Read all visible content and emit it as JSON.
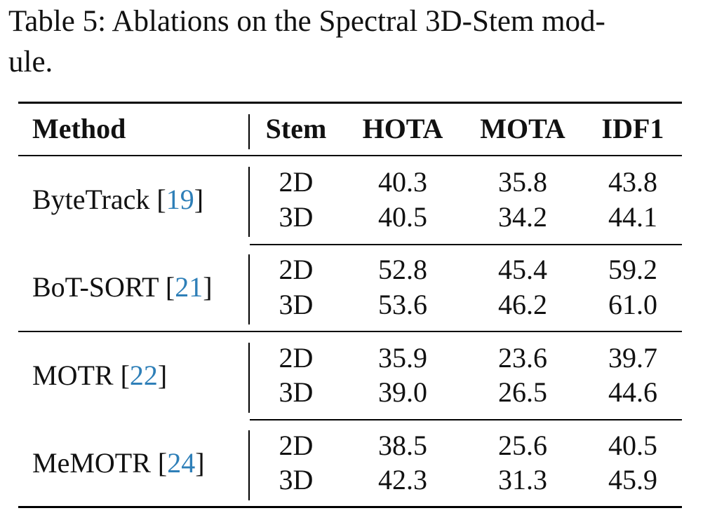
{
  "caption": "Table 5: Ablations on the Spectral 3D-Stem module.",
  "caption_line1": "Table 5: Ablations on the Spectral 3D-Stem mod-",
  "caption_line2": "ule.",
  "headers": {
    "method": "Method",
    "stem": "Stem",
    "hota": "HOTA",
    "mota": "MOTA",
    "idf1": "IDF1"
  },
  "groups": [
    {
      "method": "ByteTrack",
      "ref": "19",
      "rows": [
        {
          "stem": "2D",
          "hota": "40.3",
          "mota": "35.8",
          "idf1": "43.8"
        },
        {
          "stem": "3D",
          "hota": "40.5",
          "mota": "34.2",
          "idf1": "44.1"
        }
      ]
    },
    {
      "method": "BoT-SORT",
      "ref": "21",
      "rows": [
        {
          "stem": "2D",
          "hota": "52.8",
          "mota": "45.4",
          "idf1": "59.2"
        },
        {
          "stem": "3D",
          "hota": "53.6",
          "mota": "46.2",
          "idf1": "61.0"
        }
      ]
    },
    {
      "method": "MOTR",
      "ref": "22",
      "rows": [
        {
          "stem": "2D",
          "hota": "35.9",
          "mota": "23.6",
          "idf1": "39.7"
        },
        {
          "stem": "3D",
          "hota": "39.0",
          "mota": "26.5",
          "idf1": "44.6"
        }
      ]
    },
    {
      "method": "MeMOTR",
      "ref": "24",
      "rows": [
        {
          "stem": "2D",
          "hota": "38.5",
          "mota": "25.6",
          "idf1": "40.5"
        },
        {
          "stem": "3D",
          "hota": "42.3",
          "mota": "31.3",
          "idf1": "45.9"
        }
      ]
    }
  ]
}
